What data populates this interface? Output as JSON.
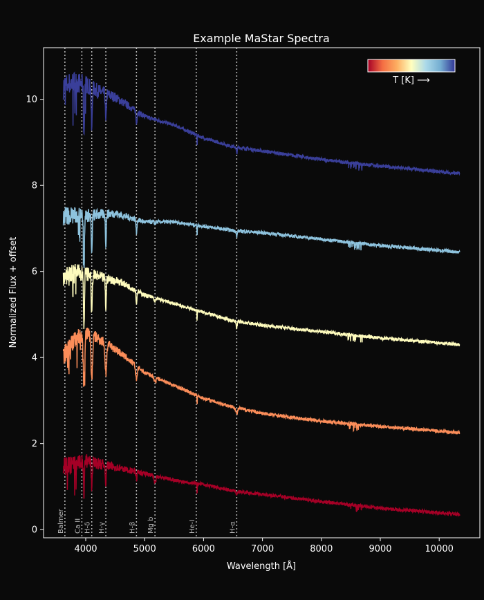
{
  "chart_data": {
    "type": "line",
    "title": "Example MaStar Spectra",
    "xlabel": "Wavelength [Å]",
    "ylabel": "Normalized Flux + offset",
    "xlim": [
      3284,
      10690
    ],
    "ylim": [
      -0.19,
      11.2
    ],
    "xticks": [
      4000,
      5000,
      6000,
      7000,
      8000,
      9000,
      10000
    ],
    "yticks": [
      0,
      2,
      4,
      6,
      8,
      10
    ],
    "grid": false,
    "background": "#0a0a0a",
    "colorbar": {
      "label": "T [K] ⟶",
      "colormap": "RdYlBu",
      "placement": "top-right",
      "colors": [
        "#a50026",
        "#f46d43",
        "#fdae61",
        "#ffffbf",
        "#abd9e9",
        "#74add1",
        "#313695"
      ]
    },
    "spectral_lines": [
      {
        "label": "Balmer",
        "wavelength": 3646
      },
      {
        "label": "Ca II",
        "wavelength": 3934
      },
      {
        "label": "H-δ",
        "wavelength": 4102
      },
      {
        "label": "H-γ",
        "wavelength": 4341
      },
      {
        "label": "H-β",
        "wavelength": 4861
      },
      {
        "label": "Mg b",
        "wavelength": 5175
      },
      {
        "label": "He-I",
        "wavelength": 5876
      },
      {
        "label": "H-α",
        "wavelength": 6563
      }
    ],
    "series": [
      {
        "color": "#3a3f9a",
        "x": [
          3650,
          3800,
          4000,
          4200,
          4500,
          5000,
          5500,
          6000,
          6500,
          7000,
          8000,
          9000,
          10350
        ],
        "y": [
          10.3,
          10.4,
          10.35,
          10.2,
          10.05,
          9.6,
          9.4,
          9.1,
          8.9,
          8.8,
          8.6,
          8.45,
          8.27
        ]
      },
      {
        "color": "#8ec3de",
        "x": [
          3650,
          4000,
          4500,
          5000,
          5500,
          6000,
          6500,
          7000,
          8000,
          9000,
          10350
        ],
        "y": [
          7.3,
          7.3,
          7.35,
          7.15,
          7.15,
          7.05,
          6.95,
          6.9,
          6.75,
          6.6,
          6.45
        ]
      },
      {
        "color": "#fefbbd",
        "x": [
          3650,
          3800,
          4000,
          4300,
          4600,
          5000,
          5500,
          6000,
          6500,
          7000,
          8000,
          9000,
          10350
        ],
        "y": [
          5.9,
          6.0,
          5.95,
          5.85,
          5.75,
          5.45,
          5.25,
          5.05,
          4.85,
          4.75,
          4.6,
          4.45,
          4.3
        ]
      },
      {
        "color": "#fb8d59",
        "x": [
          3650,
          3800,
          4000,
          4200,
          4500,
          5000,
          5500,
          6000,
          6500,
          7000,
          8000,
          9000,
          10350
        ],
        "y": [
          4.1,
          4.4,
          4.6,
          4.45,
          4.2,
          3.65,
          3.35,
          3.05,
          2.85,
          2.7,
          2.52,
          2.4,
          2.25
        ]
      },
      {
        "color": "#a50026",
        "x": [
          3650,
          4000,
          4500,
          5000,
          5500,
          6000,
          6500,
          7000,
          8000,
          9000,
          10350
        ],
        "y": [
          1.45,
          1.6,
          1.45,
          1.3,
          1.15,
          1.05,
          0.9,
          0.82,
          0.65,
          0.5,
          0.35
        ]
      }
    ]
  }
}
